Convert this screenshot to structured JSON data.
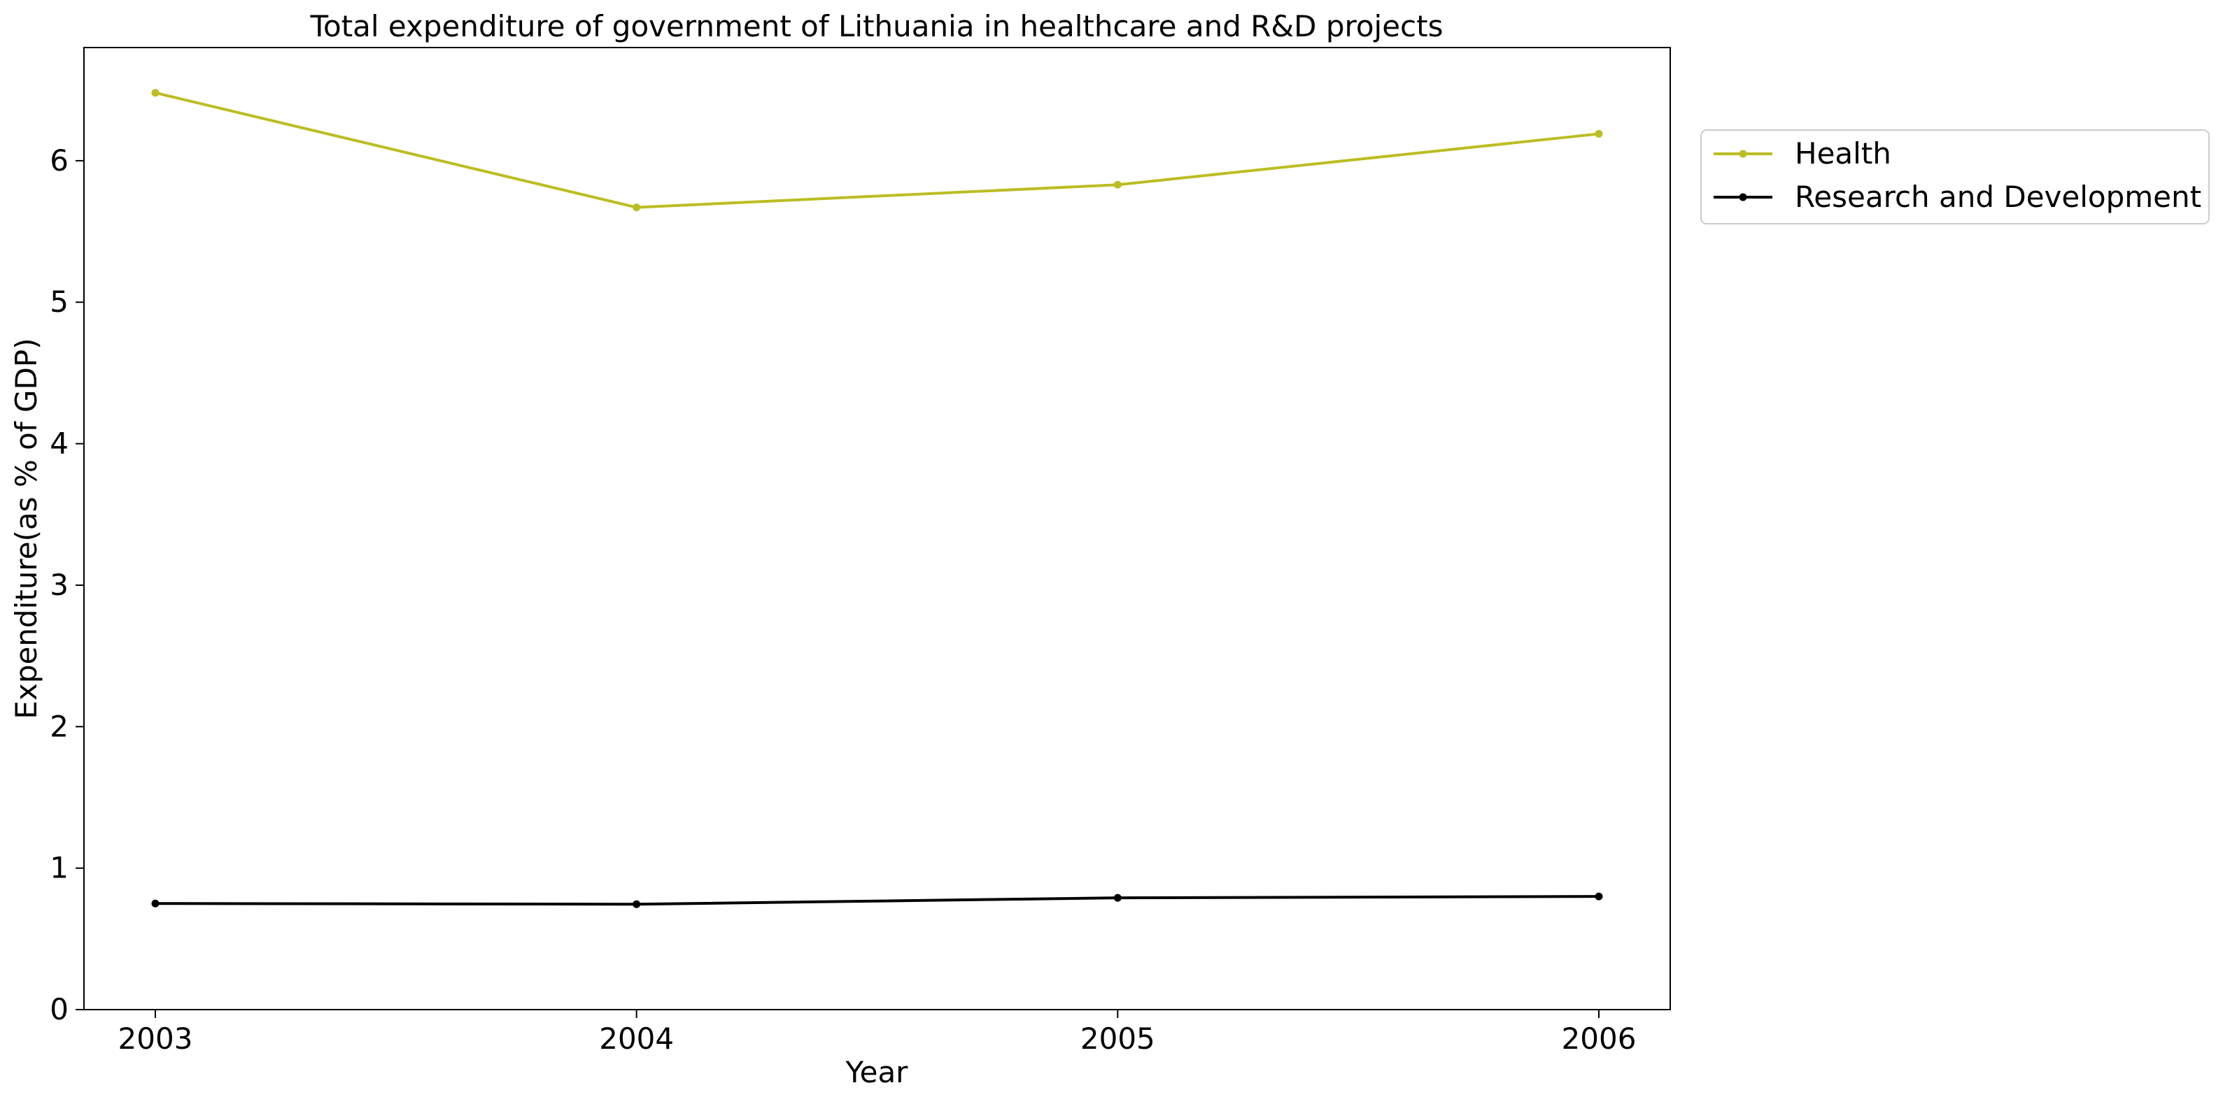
{
  "chart_data": {
    "type": "line",
    "title": "Total expenditure of government of Lithuania in healthcare and R&D projects",
    "xlabel": "Year",
    "ylabel": "Expenditure(as % of GDP)",
    "x": [
      "2003",
      "2004",
      "2005",
      "2006"
    ],
    "ylim": [
      0,
      6.8
    ],
    "yticks": [
      "0",
      "1",
      "2",
      "3",
      "4",
      "5",
      "6"
    ],
    "grid": false,
    "legend_position": "upper-right-outside",
    "series": [
      {
        "name": "Health",
        "color": "#bcbd22",
        "values": [
          6.48,
          5.67,
          5.83,
          6.19
        ]
      },
      {
        "name": "Research and Development",
        "color": "#000000",
        "values": [
          0.75,
          0.745,
          0.79,
          0.8
        ]
      }
    ]
  }
}
